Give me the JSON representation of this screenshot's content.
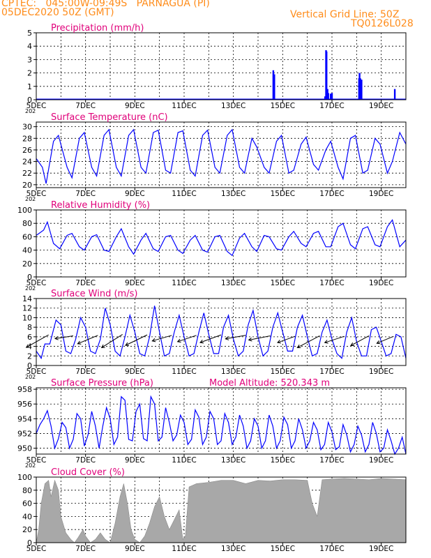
{
  "header": {
    "station": "CPTEC:   045:00W-09:49S   PARNAGUA (PI)",
    "run": "05DEC2020 50Z (GMT)",
    "grid_note": "Vertical Grid Line: 50Z",
    "code": "TQ0126L028"
  },
  "colors": {
    "header": "#ff8c1a",
    "title": "#e0007a",
    "series": "#0000ff",
    "cloud": "#a8a8a8",
    "axis": "#000000"
  },
  "x_axis": {
    "tick_labels": [
      "5DEC",
      "7DEC",
      "9DEC",
      "11DEC",
      "13DEC",
      "15DEC",
      "17DEC",
      "19DEC"
    ],
    "year_stub": "202"
  },
  "chart_data": [
    {
      "id": "precip",
      "type": "bar",
      "title": "Precipitation (mm/h)",
      "ylim": [
        0,
        5
      ],
      "yticks": [
        0,
        1,
        2,
        3,
        4,
        5
      ],
      "grid": true,
      "x_unit": "days since 5DEC 00Z",
      "xlim": [
        0,
        15
      ],
      "x": [
        9.62,
        9.66,
        11.72,
        11.76,
        11.78,
        11.82,
        11.85,
        11.95,
        12.0,
        13.1,
        13.12,
        13.15,
        13.2,
        14.55
      ],
      "values": [
        2.2,
        1.9,
        0.25,
        3.7,
        3.6,
        0.8,
        0.5,
        0.45,
        0.5,
        1.6,
        2.0,
        1.6,
        1.5,
        0.8
      ],
      "baseline": 0.05
    },
    {
      "id": "temp",
      "type": "line",
      "title": "Surface Temperature (nC)",
      "ylim": [
        19.5,
        30.8
      ],
      "yticks": [
        20,
        22,
        24,
        26,
        28,
        30
      ],
      "grid": true,
      "xlim": [
        0,
        15
      ],
      "x": [
        0,
        0.25,
        0.4,
        0.7,
        0.9,
        1.25,
        1.45,
        1.75,
        1.95,
        2.25,
        2.45,
        2.75,
        2.95,
        3.25,
        3.45,
        3.75,
        3.95,
        4.25,
        4.45,
        4.75,
        4.95,
        5.25,
        5.45,
        5.75,
        5.95,
        6.25,
        6.45,
        6.75,
        6.95,
        7.25,
        7.45,
        7.75,
        7.95,
        8.25,
        8.45,
        8.75,
        8.95,
        9.25,
        9.45,
        9.75,
        9.95,
        10.25,
        10.45,
        10.75,
        10.95,
        11.25,
        11.45,
        11.75,
        11.95,
        12.25,
        12.45,
        12.75,
        12.95,
        13.25,
        13.45,
        13.75,
        13.95,
        14.25,
        14.45,
        14.75,
        15.0
      ],
      "values": [
        24.5,
        23.0,
        20.2,
        27.5,
        28.5,
        23.0,
        21.2,
        28.0,
        29.0,
        23.0,
        21.5,
        28.5,
        29.5,
        23.0,
        21.5,
        28.5,
        29.5,
        23.0,
        22.0,
        29.0,
        29.4,
        22.5,
        22.0,
        29.0,
        29.3,
        22.5,
        21.5,
        28.5,
        29.4,
        23.0,
        22.0,
        28.5,
        29.5,
        23.0,
        22.0,
        28.0,
        26.5,
        23.0,
        22.0,
        27.5,
        28.5,
        22.0,
        22.5,
        27.0,
        28.2,
        23.5,
        22.5,
        26.0,
        27.5,
        23.0,
        21.0,
        28.0,
        28.5,
        22.0,
        22.5,
        28.0,
        27.0,
        22.0,
        24.0,
        29.0,
        27.0
      ]
    },
    {
      "id": "rh",
      "type": "line",
      "title": "Relative Humidity (%)",
      "ylim": [
        0,
        100
      ],
      "yticks": [
        0,
        20,
        40,
        60,
        80,
        100
      ],
      "grid": true,
      "xlim": [
        0,
        15
      ],
      "x": [
        0,
        0.3,
        0.45,
        0.7,
        0.95,
        1.25,
        1.45,
        1.75,
        1.95,
        2.25,
        2.45,
        2.75,
        2.95,
        3.25,
        3.45,
        3.75,
        3.95,
        4.25,
        4.45,
        4.75,
        4.95,
        5.25,
        5.45,
        5.75,
        5.95,
        6.25,
        6.45,
        6.75,
        6.95,
        7.25,
        7.45,
        7.75,
        7.95,
        8.25,
        8.45,
        8.75,
        8.95,
        9.25,
        9.45,
        9.75,
        9.95,
        10.25,
        10.45,
        10.75,
        10.95,
        11.25,
        11.45,
        11.75,
        11.95,
        12.25,
        12.45,
        12.75,
        12.95,
        13.25,
        13.45,
        13.75,
        13.95,
        14.25,
        14.45,
        14.75,
        15.0
      ],
      "values": [
        62,
        70,
        82,
        50,
        42,
        62,
        65,
        45,
        40,
        60,
        63,
        40,
        38,
        60,
        72,
        45,
        34,
        55,
        65,
        42,
        38,
        60,
        62,
        40,
        35,
        55,
        62,
        40,
        37,
        60,
        62,
        38,
        32,
        58,
        65,
        45,
        38,
        62,
        60,
        42,
        40,
        60,
        68,
        50,
        45,
        65,
        68,
        45,
        45,
        75,
        80,
        48,
        42,
        72,
        75,
        48,
        45,
        75,
        85,
        45,
        55
      ]
    },
    {
      "id": "wind",
      "type": "line",
      "title": "Surface Wind (m/s)",
      "ylim": [
        0,
        14
      ],
      "yticks": [
        0,
        2,
        4,
        6,
        8,
        10,
        12,
        14
      ],
      "grid": true,
      "xlim": [
        0,
        15
      ],
      "x": [
        0,
        0.2,
        0.35,
        0.55,
        0.8,
        1.0,
        1.2,
        1.4,
        1.6,
        1.8,
        2.0,
        2.2,
        2.4,
        2.6,
        2.8,
        3.0,
        3.2,
        3.4,
        3.6,
        3.8,
        4.0,
        4.2,
        4.4,
        4.6,
        4.8,
        5.0,
        5.2,
        5.4,
        5.6,
        5.8,
        6.0,
        6.2,
        6.4,
        6.6,
        6.8,
        7.0,
        7.2,
        7.4,
        7.6,
        7.8,
        8.0,
        8.2,
        8.4,
        8.6,
        8.8,
        9.0,
        9.2,
        9.4,
        9.6,
        9.8,
        10.0,
        10.2,
        10.4,
        10.6,
        10.8,
        11.0,
        11.2,
        11.4,
        11.6,
        11.8,
        12.0,
        12.2,
        12.4,
        12.6,
        12.8,
        13.0,
        13.2,
        13.4,
        13.6,
        13.8,
        14.0,
        14.2,
        14.4,
        14.6,
        14.8,
        15.0
      ],
      "values": [
        3.0,
        1.5,
        4.5,
        4.5,
        9.5,
        8.5,
        3.0,
        2.5,
        5.5,
        10.0,
        8.0,
        3.0,
        2.5,
        5.5,
        12.0,
        8.5,
        3.0,
        2.0,
        6.0,
        10.5,
        7.0,
        2.5,
        2.0,
        6.0,
        12.5,
        7.0,
        2.0,
        2.5,
        7.0,
        10.5,
        6.0,
        2.0,
        2.5,
        7.0,
        11.0,
        6.5,
        2.5,
        2.5,
        8.0,
        10.5,
        5.5,
        2.0,
        3.0,
        8.5,
        11.5,
        6.0,
        2.0,
        3.0,
        8.0,
        11.0,
        7.0,
        3.0,
        3.0,
        8.0,
        10.5,
        6.0,
        2.0,
        2.5,
        7.0,
        9.5,
        5.5,
        2.5,
        1.5,
        7.0,
        10.0,
        5.0,
        2.0,
        2.0,
        7.5,
        8.0,
        5.0,
        2.0,
        2.5,
        6.5,
        6.0,
        1.5
      ],
      "vectors": {
        "note": "wind barbs: x in days, u/v in m/s",
        "x": [
          0.5,
          1.5,
          2.5,
          3.5,
          4.5,
          5.5,
          6.5,
          7.5,
          8.5,
          9.5,
          10.5,
          11.5,
          12.5,
          13.5,
          14.5
        ],
        "u": [
          -3.2,
          -2.6,
          -2.9,
          -3.0,
          -3.1,
          -2.8,
          -2.7,
          -3.0,
          -2.9,
          -3.1,
          -2.5,
          -3.2,
          -2.8,
          -2.6,
          -2.4
        ],
        "v": [
          -1.8,
          -0.4,
          -1.2,
          -1.9,
          -1.5,
          -0.8,
          -0.9,
          -1.1,
          -0.5,
          -0.6,
          -0.9,
          -1.7,
          -0.9,
          -1.4,
          -1.0
        ],
        "y_anchor": [
          6.4,
          6.2,
          6.3,
          6.5,
          6.4,
          6.3,
          6.3,
          6.4,
          6.3,
          6.2,
          6.1,
          6.2,
          6.1,
          6.2,
          6.1
        ]
      }
    },
    {
      "id": "pres",
      "type": "line",
      "title": "Surface Pressure (hPa)",
      "extra_label": "Model Altitude: 520.343 m",
      "ylim": [
        949.2,
        958.2
      ],
      "yticks": [
        950,
        952,
        954,
        956,
        958
      ],
      "grid": true,
      "xlim": [
        0,
        15
      ],
      "x": [
        0,
        0.15,
        0.3,
        0.45,
        0.6,
        0.75,
        0.9,
        1.05,
        1.2,
        1.35,
        1.5,
        1.65,
        1.8,
        1.95,
        2.1,
        2.25,
        2.4,
        2.55,
        2.7,
        2.85,
        3.0,
        3.15,
        3.3,
        3.45,
        3.6,
        3.75,
        3.9,
        4.05,
        4.2,
        4.35,
        4.5,
        4.65,
        4.8,
        4.95,
        5.1,
        5.25,
        5.4,
        5.55,
        5.7,
        5.85,
        6.0,
        6.15,
        6.3,
        6.45,
        6.6,
        6.75,
        6.9,
        7.05,
        7.2,
        7.35,
        7.5,
        7.65,
        7.8,
        7.95,
        8.1,
        8.25,
        8.4,
        8.55,
        8.7,
        8.85,
        9.0,
        9.15,
        9.3,
        9.45,
        9.6,
        9.75,
        9.9,
        10.05,
        10.2,
        10.35,
        10.5,
        10.65,
        10.8,
        10.95,
        11.1,
        11.25,
        11.4,
        11.55,
        11.7,
        11.85,
        12.0,
        12.15,
        12.3,
        12.45,
        12.6,
        12.75,
        12.9,
        13.05,
        13.2,
        13.35,
        13.5,
        13.65,
        13.8,
        13.95,
        14.1,
        14.25,
        14.4,
        14.55,
        14.7,
        14.85,
        15.0
      ],
      "values": [
        952.0,
        953.2,
        954.0,
        955.1,
        953.0,
        950.0,
        951.3,
        953.5,
        952.8,
        950.0,
        951.2,
        954.7,
        954.0,
        950.3,
        951.8,
        955.0,
        953.0,
        950.0,
        953.0,
        955.5,
        954.0,
        950.5,
        951.5,
        957.0,
        956.5,
        951.2,
        951.0,
        955.0,
        956.0,
        951.3,
        951.0,
        957.0,
        956.0,
        951.0,
        951.5,
        955.5,
        953.5,
        951.0,
        951.8,
        954.5,
        953.5,
        950.5,
        951.2,
        955.2,
        954.2,
        950.5,
        951.5,
        955.0,
        954.0,
        950.5,
        951.0,
        954.7,
        953.5,
        950.5,
        951.5,
        954.5,
        953.0,
        950.0,
        951.0,
        954.0,
        953.0,
        950.0,
        951.0,
        954.5,
        953.0,
        950.0,
        951.0,
        954.2,
        953.2,
        950.0,
        951.0,
        954.0,
        952.5,
        950.0,
        951.0,
        953.5,
        952.5,
        949.8,
        950.5,
        953.5,
        952.2,
        949.8,
        950.2,
        953.2,
        951.8,
        949.5,
        950.5,
        953.0,
        951.8,
        949.5,
        950.5,
        953.5,
        952.0,
        949.5,
        950.0,
        952.5,
        951.0,
        949.2,
        950.0,
        951.5,
        949.2
      ]
    },
    {
      "id": "cloud",
      "type": "area",
      "title": "Cloud Cover (%)",
      "ylim": [
        0,
        100
      ],
      "yticks": [
        0,
        20,
        40,
        60,
        80,
        100
      ],
      "grid": true,
      "xlim": [
        0,
        15
      ],
      "x": [
        0,
        0.1,
        0.2,
        0.35,
        0.5,
        0.6,
        0.75,
        0.9,
        1.0,
        1.2,
        1.4,
        1.55,
        1.7,
        1.9,
        2.0,
        2.2,
        2.4,
        2.6,
        2.8,
        3.0,
        3.2,
        3.4,
        3.55,
        3.7,
        3.85,
        4.0,
        4.2,
        4.4,
        4.6,
        4.8,
        5.0,
        5.2,
        5.4,
        5.6,
        5.8,
        5.95,
        6.05,
        6.2,
        6.5,
        7.0,
        7.5,
        8.0,
        8.5,
        9.0,
        9.5,
        10.0,
        10.5,
        11.0,
        11.2,
        11.4,
        11.6,
        12.0,
        12.5,
        13.0,
        13.5,
        14.0,
        14.5,
        15.0
      ],
      "values": [
        0,
        20,
        60,
        90,
        95,
        70,
        95,
        80,
        40,
        15,
        5,
        0,
        8,
        20,
        10,
        0,
        5,
        15,
        5,
        0,
        30,
        70,
        90,
        60,
        20,
        5,
        0,
        10,
        30,
        55,
        70,
        40,
        20,
        35,
        50,
        5,
        10,
        85,
        90,
        92,
        95,
        95,
        90,
        95,
        94,
        96,
        96,
        95,
        60,
        40,
        96,
        97,
        98,
        97,
        96,
        98,
        97,
        96
      ]
    }
  ]
}
